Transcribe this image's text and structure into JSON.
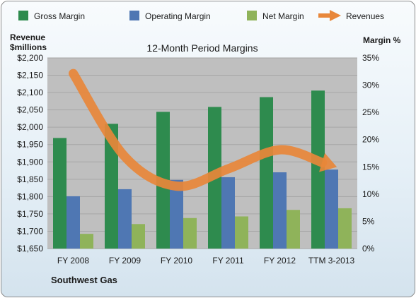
{
  "chart_data": {
    "type": "bar",
    "title": "12-Month Period Margins",
    "company": "Southwest Gas",
    "left_axis_label": [
      "Revenue",
      "$millions"
    ],
    "right_axis_label": "Margin %",
    "categories": [
      "FY 2008",
      "FY 2009",
      "FY 2010",
      "FY 2011",
      "FY 2012",
      "TTM 3-2013"
    ],
    "left_ticks": [
      "$1,650",
      "$1,700",
      "$1,750",
      "$1,800",
      "$1,850",
      "$1,900",
      "$1,950",
      "$2,000",
      "$2,050",
      "$2,100",
      "$2,150",
      "$2,200"
    ],
    "right_ticks": [
      "0%",
      "5%",
      "10%",
      "15%",
      "20%",
      "25%",
      "30%",
      "35%"
    ],
    "ylim_left": [
      1650,
      2200
    ],
    "ylim_right": [
      0,
      35
    ],
    "grid": true,
    "legend_position": "top",
    "series": [
      {
        "name": "Gross Margin",
        "axis": "right",
        "color": "#2e8b4e",
        "values": [
          20.3,
          22.9,
          25.1,
          26.0,
          27.8,
          29.0
        ]
      },
      {
        "name": "Operating Margin",
        "axis": "right",
        "color": "#4f77b3",
        "values": [
          9.6,
          10.9,
          12.6,
          13.1,
          14.0,
          14.5
        ]
      },
      {
        "name": "Net Margin",
        "axis": "right",
        "color": "#8fb35a",
        "values": [
          2.7,
          4.5,
          5.6,
          5.9,
          7.1,
          7.4
        ]
      }
    ],
    "line_series": {
      "name": "Revenues",
      "axis": "left",
      "color": "#e8873a",
      "values": [
        2155,
        1915,
        1830,
        1880,
        1935,
        1890
      ]
    }
  }
}
